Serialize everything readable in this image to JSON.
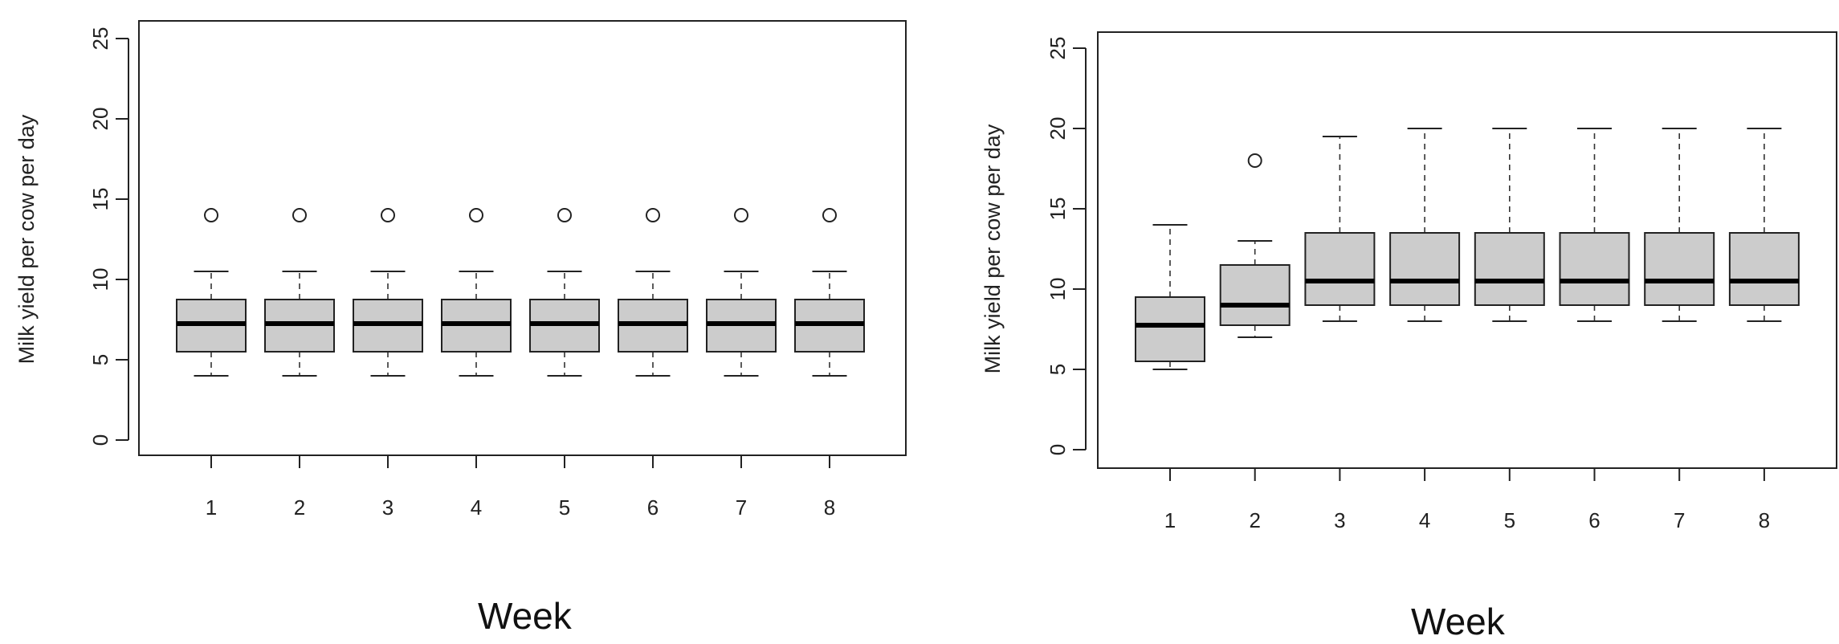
{
  "chart_data": [
    {
      "type": "boxplot",
      "xlabel": "Week",
      "ylabel": "Milk yield per cow per day",
      "ylim": [
        0,
        25
      ],
      "yticks": [
        0,
        5,
        10,
        15,
        20,
        25
      ],
      "categories": [
        "1",
        "2",
        "3",
        "4",
        "5",
        "6",
        "7",
        "8"
      ],
      "boxes": [
        {
          "min": 4,
          "q1": 5.5,
          "median": 7.25,
          "q3": 8.75,
          "max": 10.5,
          "outliers": [
            14
          ]
        },
        {
          "min": 4,
          "q1": 5.5,
          "median": 7.25,
          "q3": 8.75,
          "max": 10.5,
          "outliers": [
            14
          ]
        },
        {
          "min": 4,
          "q1": 5.5,
          "median": 7.25,
          "q3": 8.75,
          "max": 10.5,
          "outliers": [
            14
          ]
        },
        {
          "min": 4,
          "q1": 5.5,
          "median": 7.25,
          "q3": 8.75,
          "max": 10.5,
          "outliers": [
            14
          ]
        },
        {
          "min": 4,
          "q1": 5.5,
          "median": 7.25,
          "q3": 8.75,
          "max": 10.5,
          "outliers": [
            14
          ]
        },
        {
          "min": 4,
          "q1": 5.5,
          "median": 7.25,
          "q3": 8.75,
          "max": 10.5,
          "outliers": [
            14
          ]
        },
        {
          "min": 4,
          "q1": 5.5,
          "median": 7.25,
          "q3": 8.75,
          "max": 10.5,
          "outliers": [
            14
          ]
        },
        {
          "min": 4,
          "q1": 5.5,
          "median": 7.25,
          "q3": 8.75,
          "max": 10.5,
          "outliers": [
            14
          ]
        }
      ],
      "box_fill": "#cccccc"
    },
    {
      "type": "boxplot",
      "xlabel": "Week",
      "ylabel": "Milk yield per cow per day",
      "ylim": [
        0,
        25
      ],
      "yticks": [
        0,
        5,
        10,
        15,
        20,
        25
      ],
      "categories": [
        "1",
        "2",
        "3",
        "4",
        "5",
        "6",
        "7",
        "8"
      ],
      "boxes": [
        {
          "min": 5,
          "q1": 5.5,
          "median": 7.75,
          "q3": 9.5,
          "max": 14,
          "outliers": []
        },
        {
          "min": 7,
          "q1": 7.75,
          "median": 9,
          "q3": 11.5,
          "max": 13,
          "outliers": [
            18
          ]
        },
        {
          "min": 8,
          "q1": 9,
          "median": 10.5,
          "q3": 13.5,
          "max": 19.5,
          "outliers": []
        },
        {
          "min": 8,
          "q1": 9,
          "median": 10.5,
          "q3": 13.5,
          "max": 20,
          "outliers": []
        },
        {
          "min": 8,
          "q1": 9,
          "median": 10.5,
          "q3": 13.5,
          "max": 20,
          "outliers": []
        },
        {
          "min": 8,
          "q1": 9,
          "median": 10.5,
          "q3": 13.5,
          "max": 20,
          "outliers": []
        },
        {
          "min": 8,
          "q1": 9,
          "median": 10.5,
          "q3": 13.5,
          "max": 20,
          "outliers": []
        },
        {
          "min": 8,
          "q1": 9,
          "median": 10.5,
          "q3": 13.5,
          "max": 20,
          "outliers": []
        }
      ],
      "box_fill": "#cccccc"
    }
  ]
}
